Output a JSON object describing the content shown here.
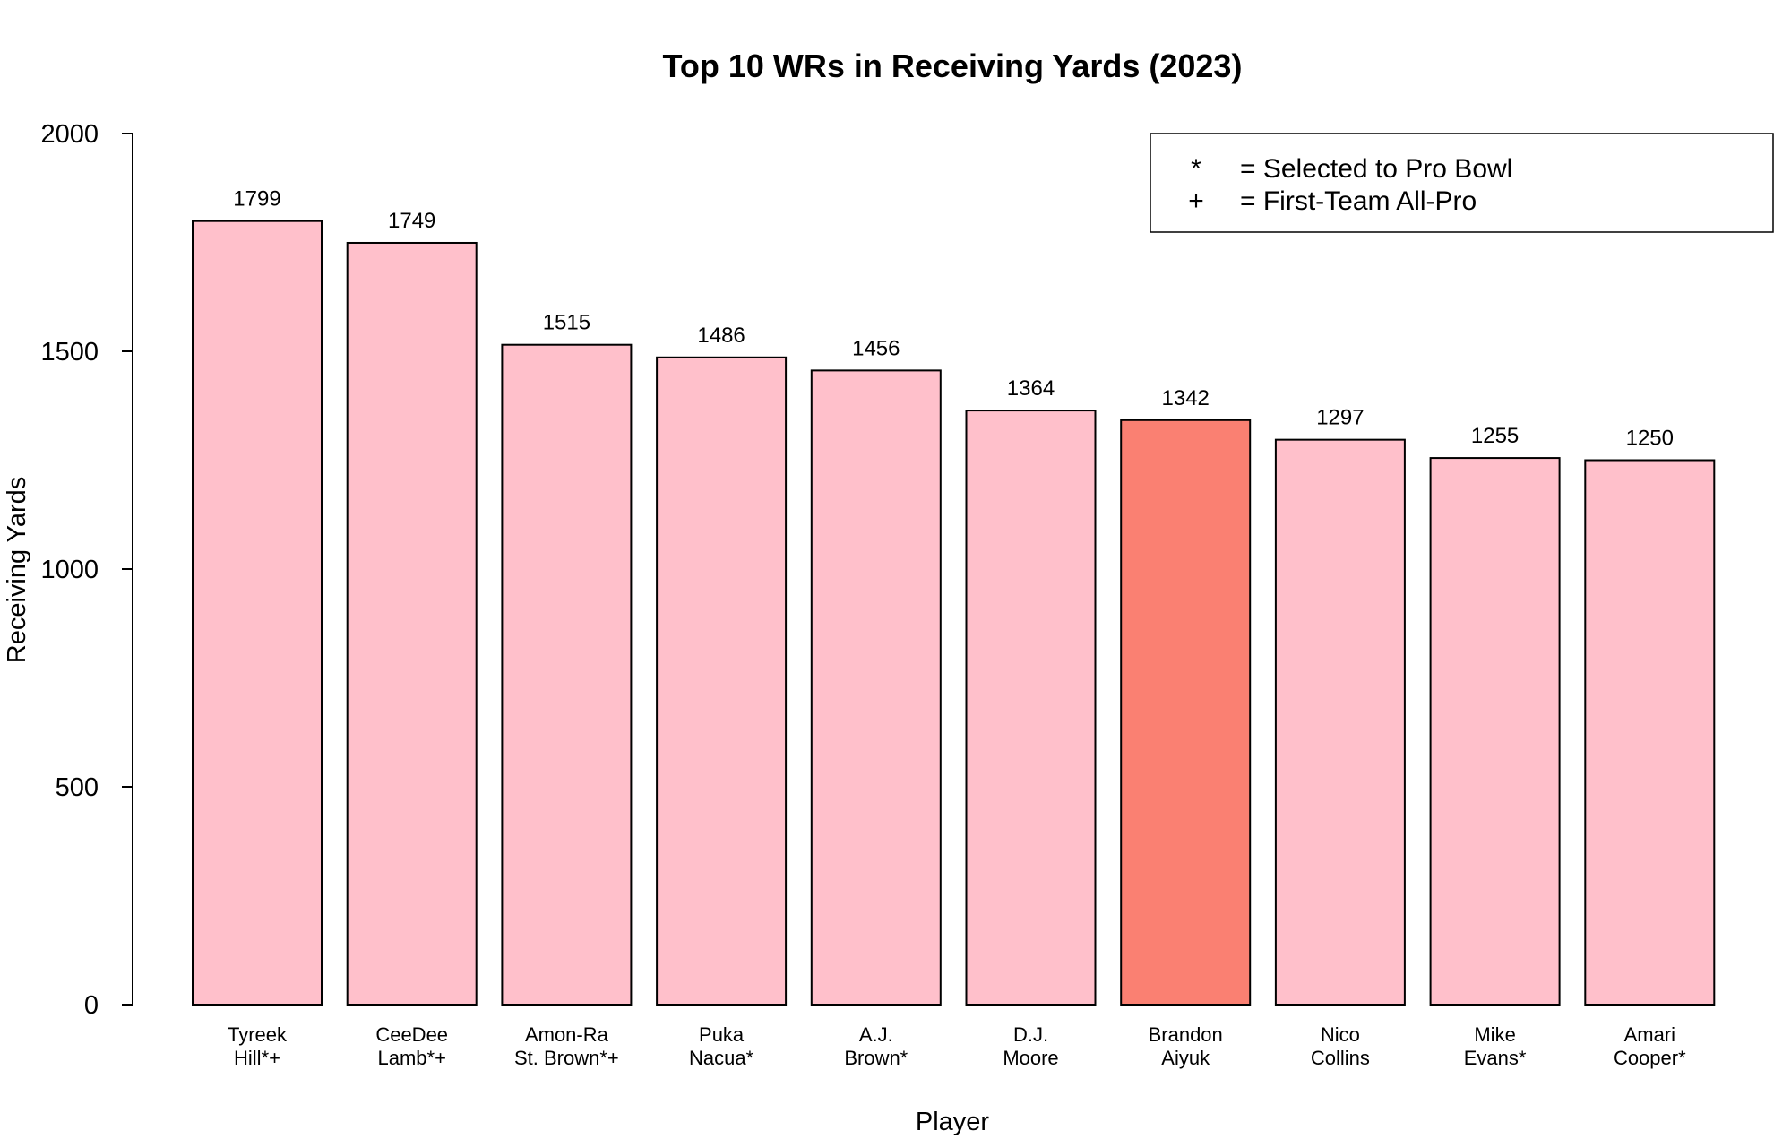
{
  "chart_data": {
    "type": "bar",
    "title": "Top 10 WRs in Receiving Yards (2023)",
    "xlabel": "Player",
    "ylabel": "Receiving Yards",
    "ylim": [
      0,
      2000
    ],
    "yticks": [
      0,
      500,
      1000,
      1500,
      2000
    ],
    "grid": false,
    "legend_position": "top-right",
    "categories": [
      [
        "Tyreek",
        "Hill*+"
      ],
      [
        "CeeDee",
        "Lamb*+"
      ],
      [
        "Amon-Ra",
        "St. Brown*+"
      ],
      [
        "Puka",
        "Nacua*"
      ],
      [
        "A.J.",
        "Brown*"
      ],
      [
        "D.J.",
        "Moore"
      ],
      [
        "Brandon",
        "Aiyuk"
      ],
      [
        "Nico",
        "Collins"
      ],
      [
        "Mike",
        "Evans*"
      ],
      [
        "Amari",
        "Cooper*"
      ]
    ],
    "values": [
      1799,
      1749,
      1515,
      1486,
      1456,
      1364,
      1342,
      1297,
      1255,
      1250
    ],
    "bar_colors": [
      "#ffc0cb",
      "#ffc0cb",
      "#ffc0cb",
      "#ffc0cb",
      "#ffc0cb",
      "#ffc0cb",
      "#fa8072",
      "#ffc0cb",
      "#ffc0cb",
      "#ffc0cb"
    ],
    "legend": [
      {
        "symbol": "*",
        "text": "= Selected to Pro Bowl"
      },
      {
        "symbol": "+",
        "text": "= First-Team All-Pro"
      }
    ]
  }
}
